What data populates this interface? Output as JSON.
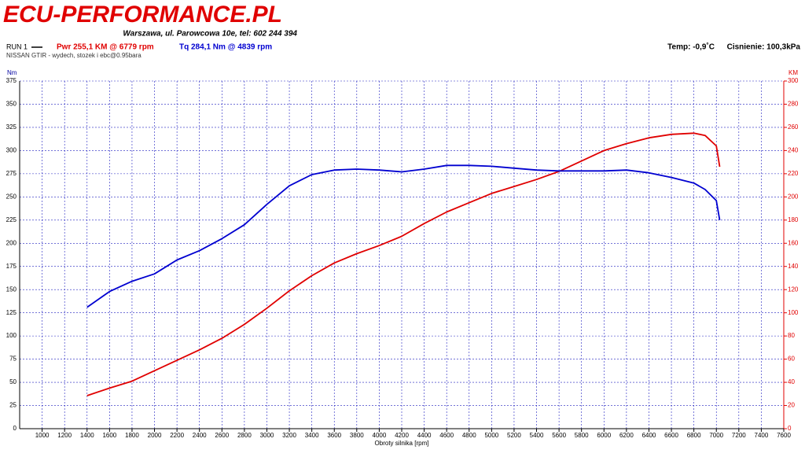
{
  "header": {
    "logo": "ECU-PERFORMANCE.PL",
    "address": "Warszawa, ul. Parowcowa 10e, tel: 602 244 394",
    "run": "RUN 1",
    "temp": "Temp: -0,9˚C",
    "pressure": "Cisnienie: 100,3kPa",
    "note": "NISSAN GTIR - wydech, stozek i ebc@0.95bara"
  },
  "chart_data": {
    "type": "line",
    "xlabel": "Obroty silnika [rpm]",
    "ylabel": "Nm",
    "y2label": "KM",
    "x": [
      1400,
      1600,
      1800,
      2000,
      2200,
      2400,
      2600,
      2800,
      3000,
      3200,
      3400,
      3600,
      3800,
      4000,
      4200,
      4400,
      4600,
      4800,
      5000,
      5200,
      5400,
      5600,
      5800,
      6000,
      6200,
      6400,
      6600,
      6800,
      6900,
      7000,
      7030
    ],
    "series": [
      {
        "name": "Pwr  255,1 KM @ 6779 rpm",
        "color": "#e00000",
        "axis": "y2",
        "values": [
          28.5,
          35,
          41,
          50,
          59,
          68,
          78,
          90,
          104,
          119,
          132,
          143,
          151,
          158,
          166,
          177,
          187,
          195,
          203,
          209,
          215,
          222,
          231,
          240,
          246,
          251,
          254,
          255,
          253,
          244,
          226
        ]
      },
      {
        "name": "Tq 284,1 Nm @ 4839 rpm",
        "color": "#0000d0",
        "values": [
          131,
          148,
          159,
          167,
          182,
          192,
          205,
          220,
          242,
          262,
          274,
          279,
          280,
          279,
          277,
          280,
          284,
          284,
          283,
          281,
          279,
          278,
          278,
          278,
          279,
          276,
          271,
          265,
          258,
          246,
          225
        ]
      }
    ],
    "xlim": [
      800,
      7600
    ],
    "xticks": [
      1000,
      1200,
      1400,
      1600,
      1800,
      2000,
      2200,
      2400,
      2600,
      2800,
      3000,
      3200,
      3400,
      3600,
      3800,
      4000,
      4200,
      4400,
      4600,
      4800,
      5000,
      5200,
      5400,
      5600,
      5800,
      6000,
      6200,
      6400,
      6600,
      6800,
      7000,
      7200,
      7400,
      7600
    ],
    "ylim": [
      0,
      375
    ],
    "yticks": [
      0,
      25,
      50,
      75,
      100,
      125,
      150,
      175,
      200,
      225,
      250,
      275,
      300,
      325,
      350,
      375
    ],
    "y2lim": [
      0,
      300
    ],
    "y2ticks": [
      0,
      20,
      40,
      60,
      80,
      100,
      120,
      140,
      160,
      180,
      200,
      220,
      240,
      260,
      280,
      300
    ],
    "grid": true
  }
}
